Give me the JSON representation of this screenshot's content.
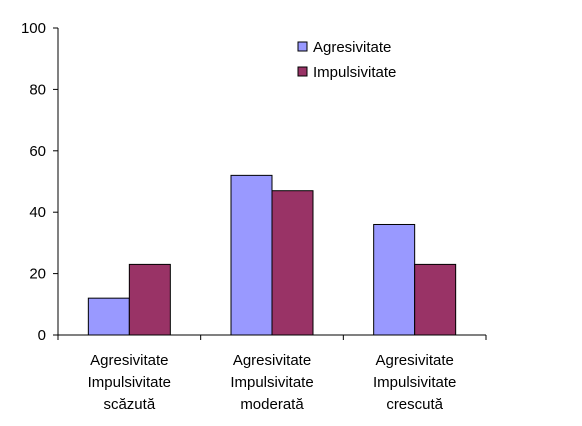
{
  "chart_data": {
    "type": "bar",
    "categories": [
      [
        "Agresivitate",
        "Impulsivitate",
        "scăzută"
      ],
      [
        "Agresivitate",
        "Impulsivitate",
        "moderată"
      ],
      [
        "Agresivitate",
        "Impulsivitate",
        "crescută"
      ]
    ],
    "series": [
      {
        "name": "Agresivitate",
        "values": [
          12,
          52,
          36
        ],
        "color": "#9999ff"
      },
      {
        "name": "Impulsivitate",
        "values": [
          23,
          47,
          23
        ],
        "color": "#993366"
      }
    ],
    "ylim": [
      0,
      100
    ],
    "yticks": [
      0,
      20,
      40,
      60,
      80,
      100
    ],
    "grid": false,
    "legend_position": "top-right"
  }
}
